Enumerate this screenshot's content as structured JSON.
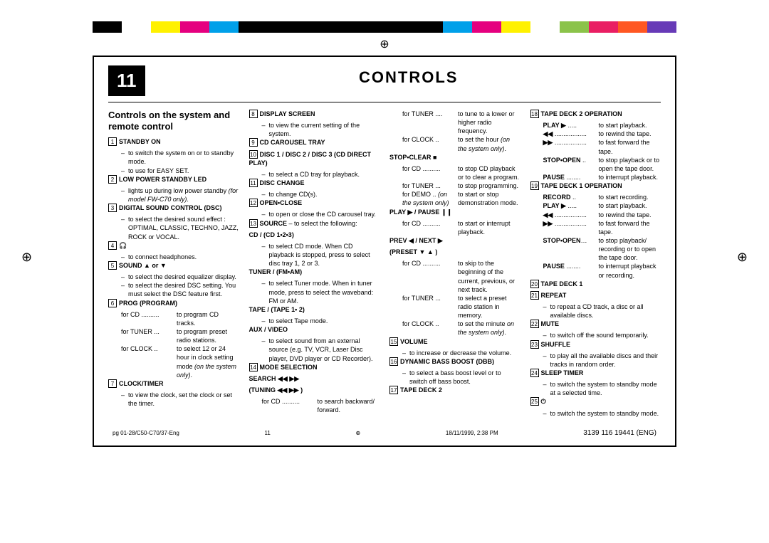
{
  "page_number": "11",
  "main_title": "CONTROLS",
  "subtitle": "Controls on the system and remote control",
  "colorbar": [
    "#000000",
    "#ffffff",
    "#fff100",
    "#e5007f",
    "#00a0e9",
    "#000000",
    "#000000",
    "#000000",
    "#000000",
    "#000000",
    "#000000",
    "#000000",
    "#00a0e9",
    "#e5007f",
    "#fff100",
    "#ffffff",
    "#8bc34a",
    "#e91e63",
    "#ff5722",
    "#673ab7"
  ],
  "footer": {
    "left": "pg 01-28/C50-C70/37-Eng",
    "mid_pg": "11",
    "mid_date": "18/11/1999, 2:38 PM",
    "right": "3139 116 19441 (ENG)"
  },
  "col1": {
    "i1": {
      "n": "1",
      "t": "STANDBY ON",
      "d": [
        "to switch the system on or to standby mode.",
        "to use for EASY SET."
      ]
    },
    "i2": {
      "n": "2",
      "t": "LOW POWER STANDBY LED",
      "d_html": "lights up during low power standby <span class='italic'>(for model FW-C70 only)</span>."
    },
    "i3": {
      "n": "3",
      "t": "DIGITAL SOUND CONTROL (DSC)",
      "d": [
        "to select the desired sound effect : OPTIMAL, CLASSIC, TECHNO, JAZZ, ROCK or VOCAL."
      ]
    },
    "i4": {
      "n": "4",
      "t": "🎧",
      "d": [
        "to connect headphones."
      ]
    },
    "i5": {
      "n": "5",
      "t": "SOUND ▲ or ▼",
      "d": [
        "to select the desired equalizer display.",
        "to select the desired DSC setting. You must select the DSC feature first."
      ]
    },
    "i6": {
      "n": "6",
      "t": "PROG (PROGRAM)"
    },
    "i6_rows": [
      {
        "l": "for CD ..........",
        "r": "to program CD tracks."
      },
      {
        "l": "for TUNER ...",
        "r": "to program preset radio stations."
      },
      {
        "l": "for CLOCK ..",
        "r_html": "to select 12 or 24 hour in clock setting mode <span class='italic'>(on the system only)</span>."
      }
    ],
    "i7": {
      "n": "7",
      "t": "CLOCK/TIMER",
      "d": [
        "to view the clock, set the clock or set the timer."
      ]
    }
  },
  "col2": {
    "i8": {
      "n": "8",
      "t": "DISPLAY SCREEN",
      "d": [
        "to view the current setting of the system."
      ]
    },
    "i9": {
      "n": "9",
      "t": "CD CAROUSEL TRAY"
    },
    "i10": {
      "n": "10",
      "t": "DISC 1 / DISC 2 / DISC 3 (CD DIRECT PLAY)",
      "d": [
        "to select a CD tray for playback."
      ]
    },
    "i11": {
      "n": "11",
      "t": "DISC CHANGE",
      "d": [
        "to change CD(s)."
      ]
    },
    "i12": {
      "n": "12",
      "t": "OPEN•CLOSE",
      "d": [
        "to open or close the CD carousel tray."
      ]
    },
    "i13": {
      "n": "13",
      "t_html": "<b>SOURCE</b> – to select the following:"
    },
    "s13a": {
      "t": "CD / (CD 1•2•3)",
      "d": [
        "to select CD mode. When CD playback is stopped, press to select disc tray 1, 2 or 3."
      ]
    },
    "s13b": {
      "t": "TUNER / (FM•AM)",
      "d": [
        "to select Tuner mode. When in tuner mode, press to select the waveband: FM or AM."
      ]
    },
    "s13c": {
      "t": "TAPE / (TAPE 1• 2)",
      "d": [
        "to select Tape mode."
      ]
    },
    "s13d": {
      "t": "AUX / VIDEO",
      "d": [
        "to select sound from an external source (e.g. TV, VCR, Laser Disc player, DVD player or CD Recorder)."
      ]
    },
    "i14": {
      "n": "14",
      "t": "MODE SELECTION"
    },
    "s14a": {
      "t": "SEARCH ◀◀ ▶▶"
    },
    "s14b": {
      "t": "(TUNING ◀◀ ▶▶ )"
    },
    "s14_rows": [
      {
        "l": "for CD ..........",
        "r": "to search backward/ forward."
      }
    ]
  },
  "col3": {
    "top_rows": [
      {
        "l": "for TUNER ....",
        "r": "to tune to a lower or higher radio frequency."
      },
      {
        "l": "for CLOCK ..",
        "r_html": "to set the hour <span class='italic'>(on the system only)</span>."
      }
    ],
    "stop": {
      "t": "STOP•CLEAR ■"
    },
    "stop_rows": [
      {
        "l": "for CD ..........",
        "r": "to stop CD playback or to clear a program."
      },
      {
        "l": "for TUNER ...",
        "r": "to stop programming."
      },
      {
        "l_html": "for DEMO .. <span class='italic'>(on the system only)</span>",
        "r": "to start or stop demonstration mode."
      }
    ],
    "play": {
      "t": "PLAY ▶ / PAUSE ❙❙"
    },
    "play_rows": [
      {
        "l": "for CD ..........",
        "r": "to start or interrupt playback."
      }
    ],
    "prev": {
      "t": "PREV ◀ / NEXT ▶"
    },
    "preset": {
      "t": "(PRESET ▼ ▲ )"
    },
    "prev_rows": [
      {
        "l": "for CD ..........",
        "r": "to skip to the beginning of the current, previous, or next track."
      },
      {
        "l": "for TUNER ...",
        "r": "to select a preset radio station in memory."
      },
      {
        "l": "for CLOCK ..",
        "r_html": "to set the minute <span class='italic'>on the system only)</span>."
      }
    ],
    "i15": {
      "n": "15",
      "t": "VOLUME",
      "d": [
        "to increase or decrease the volume."
      ]
    },
    "i16": {
      "n": "16",
      "t": "DYNAMIC BASS BOOST (DBB)",
      "d": [
        "to select a bass boost level or to switch off bass boost."
      ]
    },
    "i17": {
      "n": "17",
      "t": "TAPE DECK 2"
    }
  },
  "col4": {
    "i18": {
      "n": "18",
      "t": "TAPE DECK 2 OPERATION"
    },
    "i18_rows": [
      {
        "l": "<b>PLAY ▶</b> .....",
        "r": "to start playback."
      },
      {
        "l": "<b>◀◀</b> ..................",
        "r": "to rewind the tape."
      },
      {
        "l": "<b>▶▶</b> ..................",
        "r": "to fast forward the tape."
      },
      {
        "l": "<b>STOP•OPEN</b> ..",
        "r": "to stop playback or to open the tape door."
      },
      {
        "l": "<b>PAUSE</b> ........",
        "r": "to interrupt playback."
      }
    ],
    "i19": {
      "n": "19",
      "t": "TAPE DECK 1 OPERATION"
    },
    "i19_rows": [
      {
        "l": "<b>RECORD</b> ..",
        "r": "to start recording."
      },
      {
        "l": "<b>PLAY ▶</b> .....",
        "r": "to start playback."
      },
      {
        "l": "<b>◀◀</b> ..................",
        "r": "to rewind the tape."
      },
      {
        "l": "<b>▶▶</b> ..................",
        "r": "to fast forward the tape."
      },
      {
        "l": "<b>STOP•OPEN</b>…",
        "r": "to stop playback/ recording or to open the tape door."
      },
      {
        "l": "<b>PAUSE</b> ........",
        "r": "to interrupt playback or recording."
      }
    ],
    "i20": {
      "n": "20",
      "t": "TAPE DECK 1"
    },
    "i21": {
      "n": "21",
      "t": "REPEAT",
      "d": [
        "to repeat a CD track, a disc or all available discs."
      ]
    },
    "i22": {
      "n": "22",
      "t": "MUTE",
      "d": [
        "to switch off the sound temporarily."
      ]
    },
    "i23": {
      "n": "23",
      "t": "SHUFFLE",
      "d": [
        "to play all the available discs and their tracks in random order."
      ]
    },
    "i24": {
      "n": "24",
      "t": "SLEEP TIMER",
      "d": [
        "to switch the system to standby mode at a selected time."
      ]
    },
    "i25": {
      "n": "25",
      "t": "⏻",
      "d": [
        "to switch the system to standby mode."
      ]
    }
  }
}
